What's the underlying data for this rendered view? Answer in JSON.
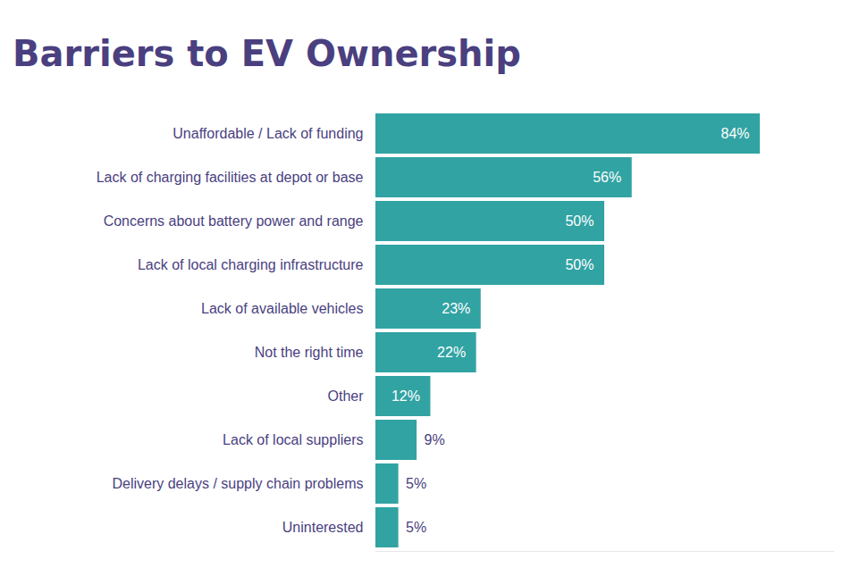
{
  "chart_data": {
    "type": "bar",
    "title": "Barriers to EV Ownership",
    "orientation": "horizontal",
    "categories": [
      "Unaffordable / Lack of funding",
      "Lack of charging facilities at depot or base",
      "Concerns about battery power and range",
      "Lack of local charging infrastructure",
      "Lack of available vehicles",
      "Not the right time",
      "Other",
      "Lack of local suppliers",
      "Delivery delays / supply chain problems",
      "Uninterested"
    ],
    "values": [
      84,
      56,
      50,
      50,
      23,
      22,
      12,
      9,
      5,
      5
    ],
    "value_labels": [
      "84%",
      "56%",
      "50%",
      "50%",
      "23%",
      "22%",
      "12%",
      "9%",
      "5%",
      "5%"
    ],
    "color": "#31a3a3",
    "xlim": [
      0,
      100
    ],
    "data_labels": true,
    "tick_labels": "y",
    "grid": false
  }
}
